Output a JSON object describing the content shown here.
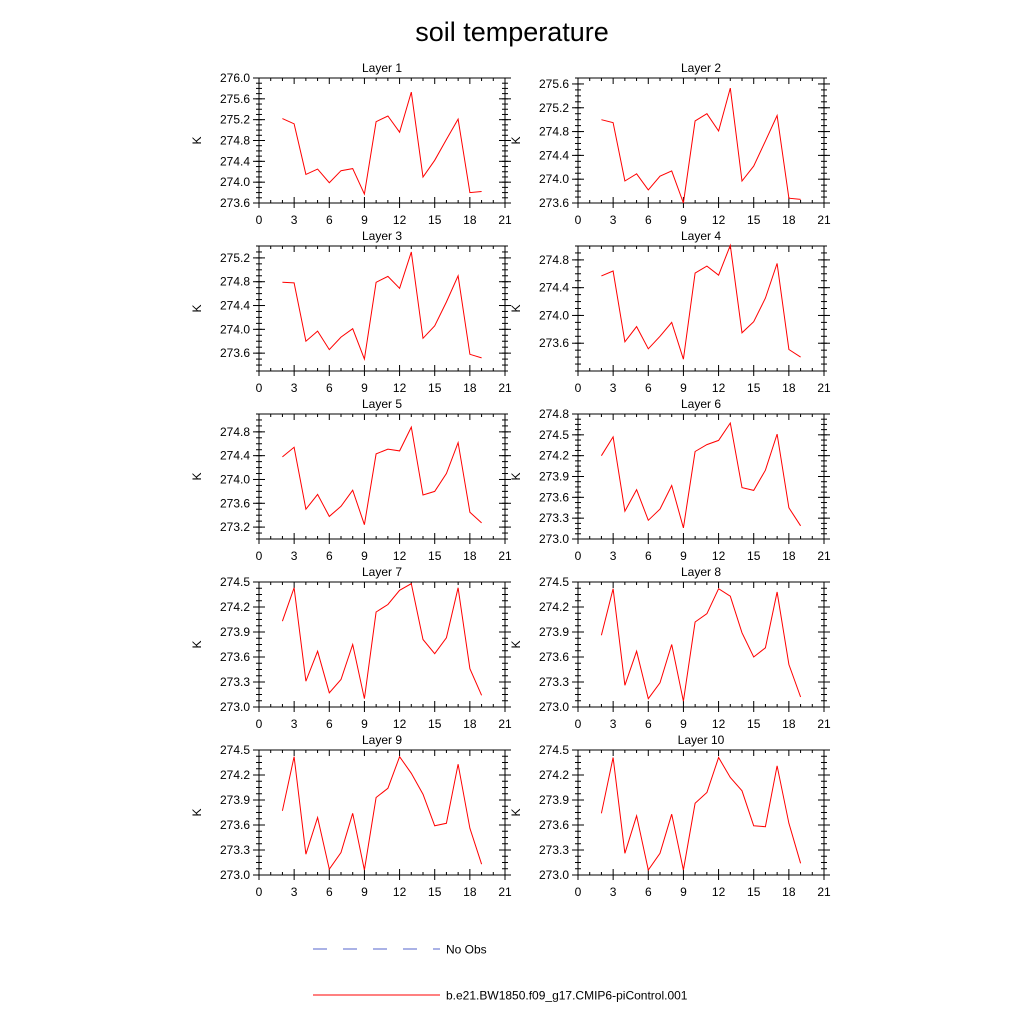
{
  "title": "soil temperature",
  "legend": {
    "placement": "bottom-center",
    "items": [
      {
        "label": "No Obs",
        "color": "#5566cc",
        "style": "dashed"
      },
      {
        "label": "b.e21.BW1850.f09_g17.CMIP6-piControl.001",
        "color": "#ff0000",
        "style": "solid"
      }
    ]
  },
  "chart_data": [
    {
      "type": "line",
      "title": "Layer 1",
      "ylabel": "K",
      "xlim": [
        0,
        21
      ],
      "xticks": [
        0,
        3,
        6,
        9,
        12,
        15,
        18,
        21
      ],
      "ylim": [
        273.6,
        276.0
      ],
      "yticks": [
        273.6,
        274.0,
        274.4,
        274.8,
        275.2,
        275.6,
        276.0
      ],
      "yticklabels": [
        "273.6",
        "274.0",
        "274.4",
        "274.8",
        "275.2",
        "275.6",
        "276.0"
      ],
      "series": [
        {
          "color": "#ff0000",
          "x": [
            2,
            3,
            4,
            5,
            6,
            7,
            8,
            9,
            10,
            11,
            12,
            13,
            14,
            15,
            16,
            17,
            18,
            19
          ],
          "y": [
            275.22,
            275.12,
            274.15,
            274.25,
            273.99,
            274.22,
            274.26,
            273.77,
            275.16,
            275.27,
            274.96,
            275.73,
            274.1,
            274.42,
            274.82,
            275.21,
            273.8,
            273.82
          ]
        }
      ]
    },
    {
      "type": "line",
      "title": "Layer 2",
      "ylabel": "K",
      "xlim": [
        0,
        21
      ],
      "xticks": [
        0,
        3,
        6,
        9,
        12,
        15,
        18,
        21
      ],
      "ylim": [
        273.6,
        275.7
      ],
      "yticks": [
        273.6,
        274.0,
        274.4,
        274.8,
        275.2,
        275.6
      ],
      "yticklabels": [
        "273.6",
        "274.0",
        "274.4",
        "274.8",
        "275.2",
        "275.6"
      ],
      "series": [
        {
          "color": "#ff0000",
          "x": [
            2,
            3,
            4,
            5,
            6,
            7,
            8,
            9,
            10,
            11,
            12,
            13,
            14,
            15,
            16,
            17,
            18,
            19
          ],
          "y": [
            275.0,
            274.95,
            273.97,
            274.09,
            273.82,
            274.05,
            274.14,
            273.6,
            274.98,
            275.1,
            274.81,
            275.53,
            273.97,
            274.22,
            274.64,
            275.07,
            273.68,
            273.66
          ]
        }
      ]
    },
    {
      "type": "line",
      "title": "Layer 3",
      "ylabel": "K",
      "xlim": [
        0,
        21
      ],
      "xticks": [
        0,
        3,
        6,
        9,
        12,
        15,
        18,
        21
      ],
      "ylim": [
        273.3,
        275.4
      ],
      "yticks": [
        273.6,
        274.0,
        274.4,
        274.8,
        275.2
      ],
      "yticklabels": [
        "273.6",
        "274.0",
        "274.4",
        "274.8",
        "275.2"
      ],
      "series": [
        {
          "color": "#ff0000",
          "x": [
            2,
            3,
            4,
            5,
            6,
            7,
            8,
            9,
            10,
            11,
            12,
            13,
            14,
            15,
            16,
            17,
            18,
            19
          ],
          "y": [
            274.79,
            274.78,
            273.8,
            273.97,
            273.66,
            273.87,
            274.01,
            273.5,
            274.79,
            274.89,
            274.69,
            275.3,
            273.85,
            274.06,
            274.46,
            274.9,
            273.58,
            273.52
          ]
        }
      ]
    },
    {
      "type": "line",
      "title": "Layer 4",
      "ylabel": "K",
      "xlim": [
        0,
        21
      ],
      "xticks": [
        0,
        3,
        6,
        9,
        12,
        15,
        18,
        21
      ],
      "ylim": [
        273.2,
        275.0
      ],
      "yticks": [
        273.6,
        274.0,
        274.4,
        274.8
      ],
      "yticklabels": [
        "273.6",
        "274.0",
        "274.4",
        "274.8"
      ],
      "series": [
        {
          "color": "#ff0000",
          "x": [
            2,
            3,
            4,
            5,
            6,
            7,
            8,
            9,
            10,
            11,
            12,
            13,
            14,
            15,
            16,
            17,
            18,
            19
          ],
          "y": [
            274.57,
            274.64,
            273.62,
            273.84,
            273.52,
            273.7,
            273.9,
            273.37,
            274.61,
            274.71,
            274.58,
            275.01,
            273.75,
            273.91,
            274.25,
            274.75,
            273.51,
            273.4
          ]
        }
      ]
    },
    {
      "type": "line",
      "title": "Layer 5",
      "ylabel": "K",
      "xlim": [
        0,
        21
      ],
      "xticks": [
        0,
        3,
        6,
        9,
        12,
        15,
        18,
        21
      ],
      "ylim": [
        273.0,
        275.1
      ],
      "yticks": [
        273.2,
        273.6,
        274.0,
        274.4,
        274.8
      ],
      "yticklabels": [
        "273.2",
        "273.6",
        "274.0",
        "274.4",
        "274.8"
      ],
      "series": [
        {
          "color": "#ff0000",
          "x": [
            2,
            3,
            4,
            5,
            6,
            7,
            8,
            9,
            10,
            11,
            12,
            13,
            14,
            15,
            16,
            17,
            18,
            19
          ],
          "y": [
            274.38,
            274.54,
            273.5,
            273.75,
            273.38,
            273.55,
            273.82,
            273.24,
            274.43,
            274.51,
            274.48,
            274.88,
            273.74,
            273.8,
            274.1,
            274.62,
            273.45,
            273.27
          ]
        }
      ]
    },
    {
      "type": "line",
      "title": "Layer 6",
      "ylabel": "K",
      "xlim": [
        0,
        21
      ],
      "xticks": [
        0,
        3,
        6,
        9,
        12,
        15,
        18,
        21
      ],
      "ylim": [
        273.0,
        274.8
      ],
      "yticks": [
        273.0,
        273.3,
        273.6,
        273.9,
        274.2,
        274.5,
        274.8
      ],
      "yticklabels": [
        "273.0",
        "273.3",
        "273.6",
        "273.9",
        "274.2",
        "274.5",
        "274.8"
      ],
      "series": [
        {
          "color": "#ff0000",
          "x": [
            2,
            3,
            4,
            5,
            6,
            7,
            8,
            9,
            10,
            11,
            12,
            13,
            14,
            15,
            16,
            17,
            18,
            19
          ],
          "y": [
            274.2,
            274.47,
            273.4,
            273.71,
            273.27,
            273.43,
            273.77,
            273.16,
            274.26,
            274.36,
            274.42,
            274.67,
            273.74,
            273.7,
            273.99,
            274.51,
            273.45,
            273.19
          ]
        }
      ]
    },
    {
      "type": "line",
      "title": "Layer 7",
      "ylabel": "K",
      "xlim": [
        0,
        21
      ],
      "xticks": [
        0,
        3,
        6,
        9,
        12,
        15,
        18,
        21
      ],
      "ylim": [
        273.0,
        274.5
      ],
      "yticks": [
        273.0,
        273.3,
        273.6,
        273.9,
        274.2,
        274.5
      ],
      "yticklabels": [
        "273.0",
        "273.3",
        "273.6",
        "273.9",
        "274.2",
        "274.5"
      ],
      "series": [
        {
          "color": "#ff0000",
          "x": [
            2,
            3,
            4,
            5,
            6,
            7,
            8,
            9,
            10,
            11,
            12,
            13,
            14,
            15,
            16,
            17,
            18,
            19
          ],
          "y": [
            274.03,
            274.43,
            273.31,
            273.67,
            273.17,
            273.33,
            273.75,
            273.1,
            274.14,
            274.23,
            274.4,
            274.48,
            273.81,
            273.64,
            273.83,
            274.43,
            273.46,
            273.14
          ]
        }
      ]
    },
    {
      "type": "line",
      "title": "Layer 8",
      "ylabel": "K",
      "xlim": [
        0,
        21
      ],
      "xticks": [
        0,
        3,
        6,
        9,
        12,
        15,
        18,
        21
      ],
      "ylim": [
        273.0,
        274.5
      ],
      "yticks": [
        273.0,
        273.3,
        273.6,
        273.9,
        274.2,
        274.5
      ],
      "yticklabels": [
        "273.0",
        "273.3",
        "273.6",
        "273.9",
        "274.2",
        "274.5"
      ],
      "series": [
        {
          "color": "#ff0000",
          "x": [
            2,
            3,
            4,
            5,
            6,
            7,
            8,
            9,
            10,
            11,
            12,
            13,
            14,
            15,
            16,
            17,
            18,
            19
          ],
          "y": [
            273.86,
            274.42,
            273.26,
            273.67,
            273.1,
            273.29,
            273.75,
            273.07,
            274.02,
            274.12,
            274.42,
            274.33,
            273.89,
            273.6,
            273.71,
            274.38,
            273.51,
            273.12
          ]
        }
      ]
    },
    {
      "type": "line",
      "title": "Layer 9",
      "ylabel": "K",
      "xlim": [
        0,
        21
      ],
      "xticks": [
        0,
        3,
        6,
        9,
        12,
        15,
        18,
        21
      ],
      "ylim": [
        273.0,
        274.5
      ],
      "yticks": [
        273.0,
        273.3,
        273.6,
        273.9,
        274.2,
        274.5
      ],
      "yticklabels": [
        "273.0",
        "273.3",
        "273.6",
        "273.9",
        "274.2",
        "274.5"
      ],
      "series": [
        {
          "color": "#ff0000",
          "x": [
            2,
            3,
            4,
            5,
            6,
            7,
            8,
            9,
            10,
            11,
            12,
            13,
            14,
            15,
            16,
            17,
            18,
            19
          ],
          "y": [
            273.77,
            274.42,
            273.25,
            273.69,
            273.07,
            273.27,
            273.74,
            273.06,
            273.93,
            274.04,
            274.42,
            274.22,
            273.97,
            273.59,
            273.62,
            274.33,
            273.56,
            273.13
          ]
        }
      ]
    },
    {
      "type": "line",
      "title": "Layer 10",
      "ylabel": "K",
      "xlim": [
        0,
        21
      ],
      "xticks": [
        0,
        3,
        6,
        9,
        12,
        15,
        18,
        21
      ],
      "ylim": [
        273.0,
        274.5
      ],
      "yticks": [
        273.0,
        273.3,
        273.6,
        273.9,
        274.2,
        274.5
      ],
      "yticklabels": [
        "273.0",
        "273.3",
        "273.6",
        "273.9",
        "274.2",
        "274.5"
      ],
      "series": [
        {
          "color": "#ff0000",
          "x": [
            2,
            3,
            4,
            5,
            6,
            7,
            8,
            9,
            10,
            11,
            12,
            13,
            14,
            15,
            16,
            17,
            18,
            19
          ],
          "y": [
            273.74,
            274.41,
            273.26,
            273.71,
            273.06,
            273.26,
            273.73,
            273.06,
            273.86,
            273.99,
            274.41,
            274.17,
            274.01,
            273.59,
            273.58,
            274.31,
            273.62,
            273.14
          ]
        }
      ]
    }
  ]
}
